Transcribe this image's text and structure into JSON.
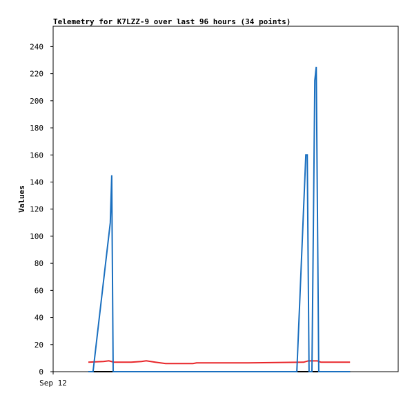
{
  "chart_data": {
    "type": "line",
    "title": "Telemetry for K7LZZ-9 over last 96 hours (34 points)",
    "y_label": "Values",
    "xlim": [
      0,
      96
    ],
    "xticks": [
      {
        "value": 0,
        "label": "Sep 12"
      }
    ],
    "ylim": [
      0,
      255
    ],
    "yticks": [
      0,
      20,
      40,
      60,
      80,
      100,
      120,
      140,
      160,
      180,
      200,
      220,
      240
    ],
    "grid": false,
    "series": [
      {
        "color": "#e8262a",
        "x": [
          9.8,
          14.0,
          15.5,
          16.9,
          21.7,
          24.6,
          25.9,
          28.4,
          31.3,
          38.9,
          39.9,
          54.3,
          69.7,
          71.0,
          73.5,
          74.5,
          82.6
        ],
        "values": [
          7,
          7.5,
          8,
          7,
          7,
          7.5,
          8,
          7,
          6,
          6,
          6.5,
          6.5,
          7,
          8,
          8,
          7,
          7
        ]
      },
      {
        "color": "#000000",
        "x": [
          9.8,
          82.6
        ],
        "values": [
          0,
          0
        ]
      },
      {
        "color": "#1a6fbf",
        "x": [
          9.8,
          11.1,
          15.9,
          16.3,
          16.7,
          67.8,
          70.3,
          70.7,
          71.2,
          72.0,
          72.8,
          73.2,
          73.9,
          82.6
        ],
        "values": [
          0,
          0,
          110,
          145,
          0,
          0,
          160,
          160,
          0,
          0,
          215,
          225,
          0,
          0
        ]
      }
    ]
  }
}
